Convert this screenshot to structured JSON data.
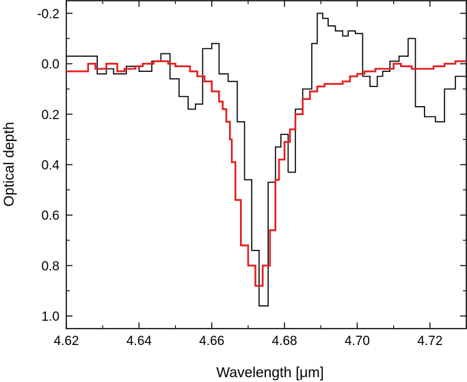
{
  "chart_data": {
    "type": "line",
    "xlabel": "Wavelength [μm]",
    "ylabel": "Optical depth",
    "xlim": [
      4.62,
      4.73
    ],
    "ylim": [
      1.05,
      -0.25
    ],
    "y_inverted": true,
    "grid": false,
    "legend": "none",
    "x_ticks": [
      4.62,
      4.64,
      4.66,
      4.68,
      4.7,
      4.72
    ],
    "x_tick_labels": [
      "4.62",
      "4.64",
      "4.66",
      "4.68",
      "4.70",
      "4.72"
    ],
    "y_ticks": [
      -0.2,
      0.0,
      0.2,
      0.4,
      0.6,
      0.8,
      1.0
    ],
    "y_tick_labels": [
      "-0.2",
      "0.0",
      "0.2",
      "0.4",
      "0.6",
      "0.8",
      "1.0"
    ],
    "series": [
      {
        "color": "#000000",
        "style": "step",
        "x": [
          4.62,
          4.624,
          4.6285,
          4.631,
          4.633,
          4.6365,
          4.64,
          4.6435,
          4.646,
          4.6485,
          4.651,
          4.6535,
          4.6555,
          4.6575,
          4.66,
          4.662,
          4.6645,
          4.667,
          4.669,
          4.671,
          4.673,
          4.6755,
          4.6775,
          4.679,
          4.681,
          4.683,
          4.685,
          4.6875,
          4.689,
          4.6905,
          4.692,
          4.694,
          4.696,
          4.6975,
          4.6995,
          4.7015,
          4.7035,
          4.7055,
          4.707,
          4.709,
          4.7115,
          4.714,
          4.716,
          4.7185,
          4.7215,
          4.724,
          4.727,
          4.73
        ],
        "y": [
          -0.03,
          -0.03,
          0.04,
          0.02,
          0.04,
          0.01,
          0.03,
          -0.01,
          -0.04,
          0.06,
          0.13,
          0.18,
          0.16,
          -0.06,
          -0.08,
          0.04,
          0.07,
          0.23,
          0.46,
          0.74,
          0.96,
          0.47,
          0.33,
          0.28,
          0.43,
          0.18,
          0.1,
          -0.08,
          -0.2,
          -0.18,
          -0.15,
          -0.13,
          -0.11,
          -0.13,
          -0.12,
          0.05,
          0.09,
          0.05,
          0.03,
          -0.01,
          -0.03,
          -0.1,
          0.17,
          0.21,
          0.23,
          0.1,
          0.05,
          0.0
        ]
      },
      {
        "color": "#e41e1e",
        "style": "step",
        "x": [
          4.62,
          4.623,
          4.626,
          4.628,
          4.631,
          4.634,
          4.636,
          4.639,
          4.641,
          4.644,
          4.646,
          4.648,
          4.65,
          4.652,
          4.654,
          4.656,
          4.658,
          4.66,
          4.662,
          4.663,
          4.664,
          4.665,
          4.6655,
          4.6665,
          4.668,
          4.67,
          4.672,
          4.674,
          4.676,
          4.6775,
          4.6785,
          4.68,
          4.6815,
          4.683,
          4.685,
          4.687,
          4.689,
          4.691,
          4.693,
          4.696,
          4.698,
          4.7,
          4.702,
          4.705,
          4.708,
          4.71,
          4.712,
          4.715,
          4.718,
          4.721,
          4.724,
          4.727,
          4.73
        ],
        "y": [
          0.03,
          0.03,
          0.0,
          0.02,
          0.0,
          0.03,
          0.02,
          0.01,
          0.0,
          -0.01,
          -0.01,
          0.0,
          0.01,
          0.01,
          0.03,
          0.05,
          0.07,
          0.11,
          0.15,
          0.18,
          0.23,
          0.3,
          0.39,
          0.54,
          0.72,
          0.8,
          0.88,
          0.8,
          0.66,
          0.46,
          0.38,
          0.31,
          0.26,
          0.2,
          0.14,
          0.11,
          0.09,
          0.08,
          0.08,
          0.07,
          0.05,
          0.04,
          0.03,
          0.02,
          0.02,
          0.0,
          0.01,
          0.02,
          0.02,
          0.01,
          0.0,
          -0.01,
          -0.01
        ]
      }
    ]
  }
}
